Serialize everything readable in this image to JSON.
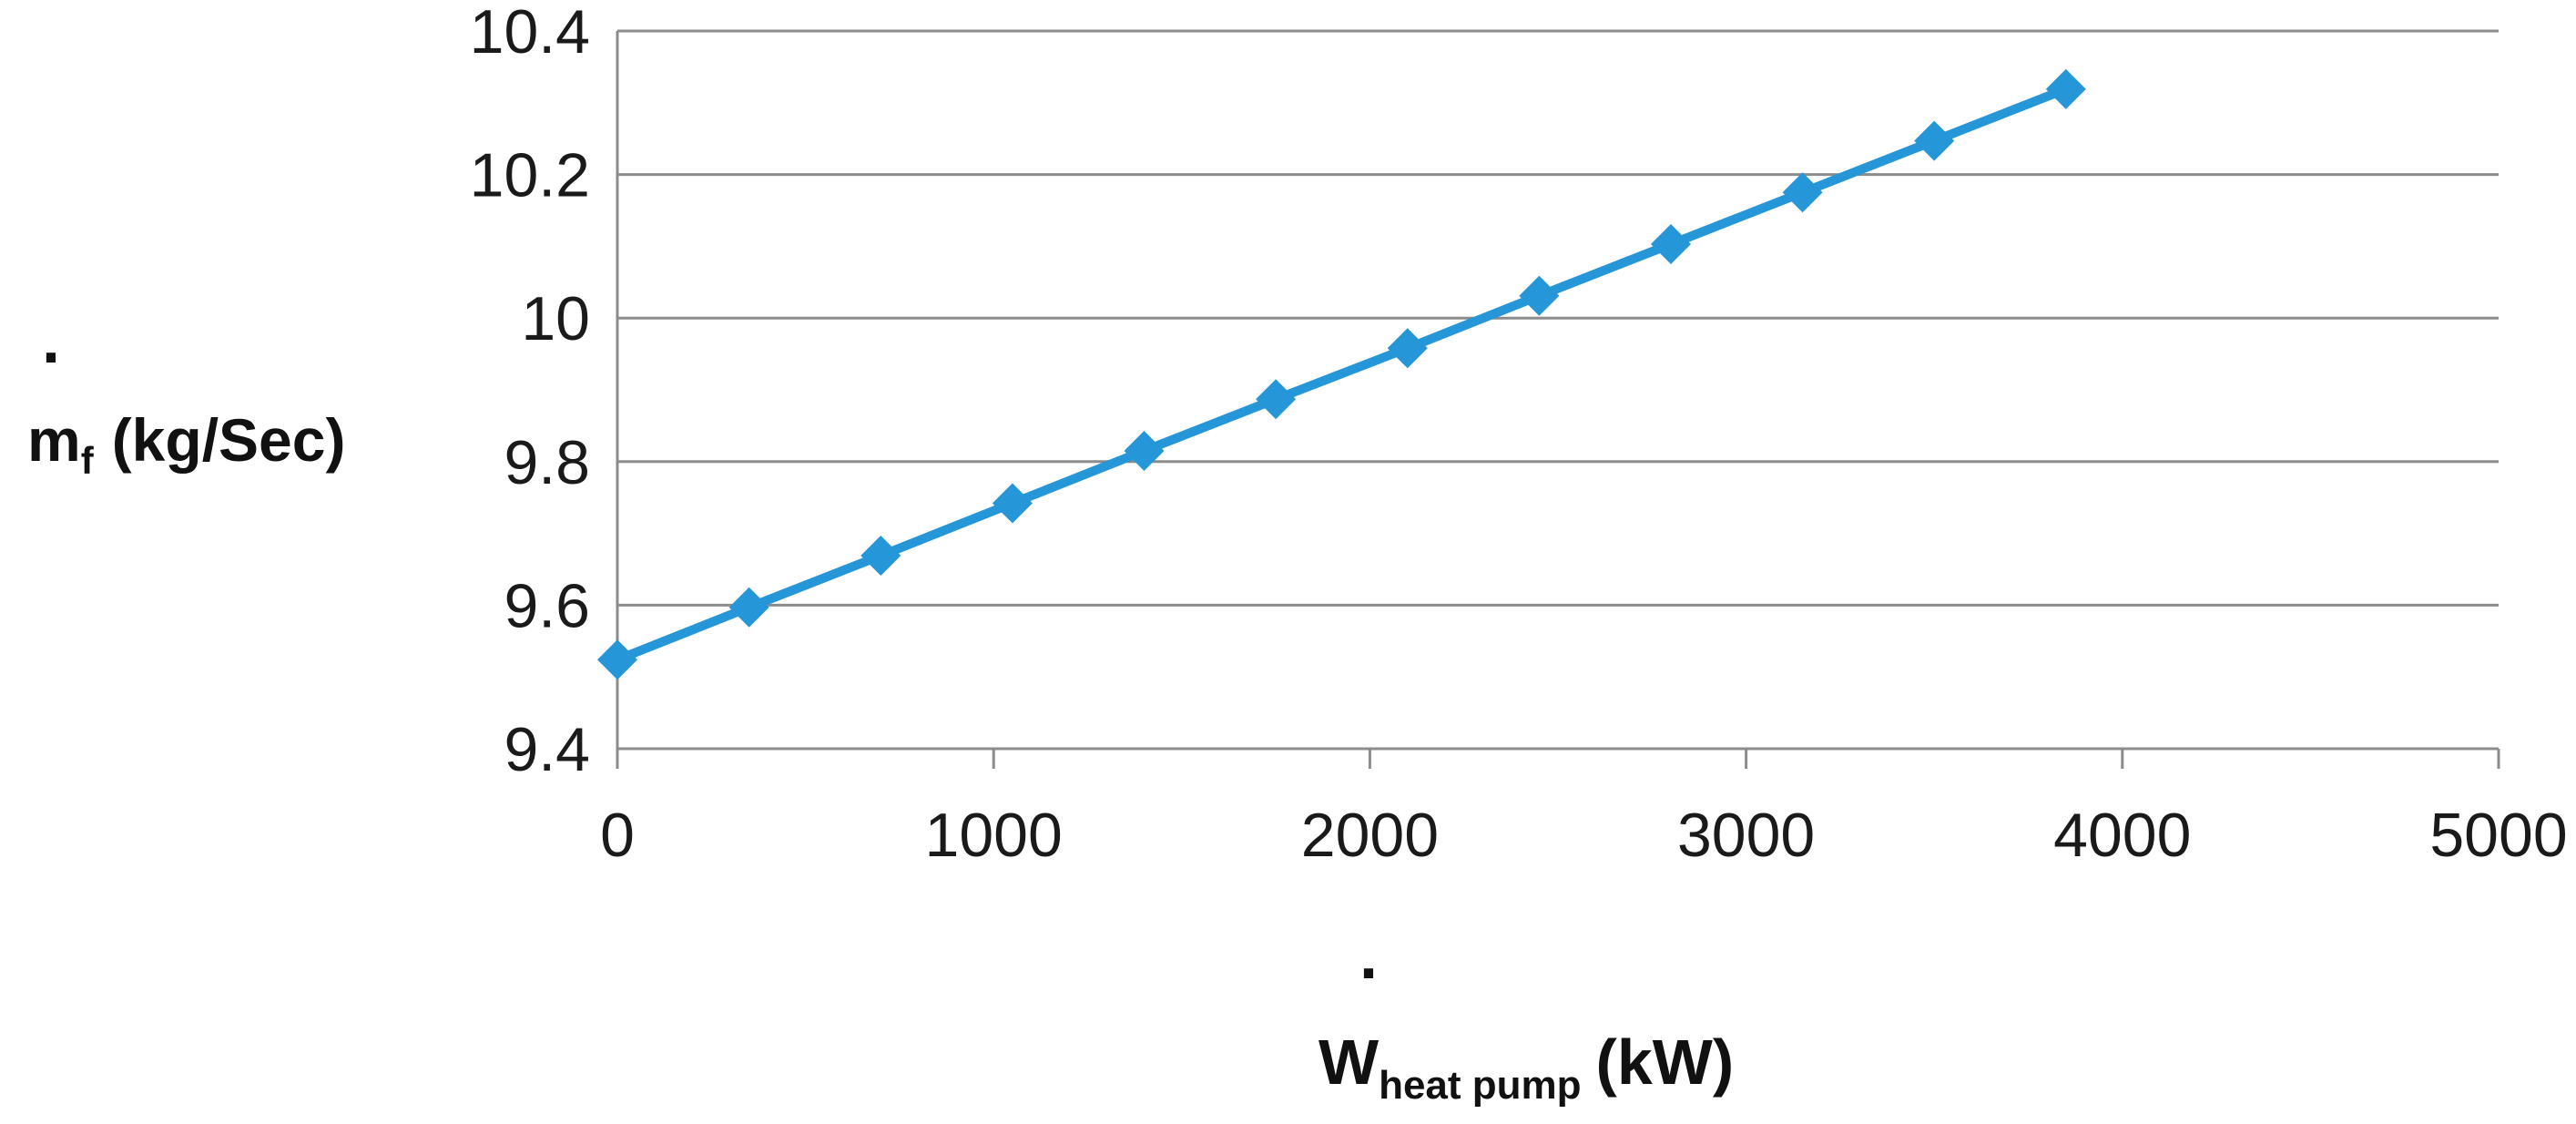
{
  "chart_data": {
    "type": "line",
    "title": "",
    "xlabel": {
      "base": "W",
      "subscript": "heat pump",
      "unit": "(kW)",
      "dot": "."
    },
    "ylabel": {
      "base": "m",
      "subscript": "f",
      "unit": "(kg/Sec)",
      "dot": "."
    },
    "xlim": [
      0,
      5000
    ],
    "ylim": [
      9.4,
      10.4
    ],
    "xticks": [
      0,
      1000,
      2000,
      3000,
      4000,
      5000
    ],
    "yticks": [
      "9.4",
      "9.6",
      "9.8",
      "10",
      "10.2",
      "10.4"
    ],
    "grid": "horizontal",
    "legend": "none",
    "series": [
      {
        "name": "m_f",
        "color": "#2596d8",
        "marker": "diamond",
        "x": [
          0,
          350,
          700,
          1050,
          1400,
          1750,
          2100,
          2450,
          2800,
          3150,
          3500,
          3850
        ],
        "y": [
          9.524,
          9.597,
          9.669,
          9.742,
          9.815,
          9.887,
          9.958,
          10.031,
          10.103,
          10.175,
          10.247,
          10.319
        ]
      }
    ]
  }
}
